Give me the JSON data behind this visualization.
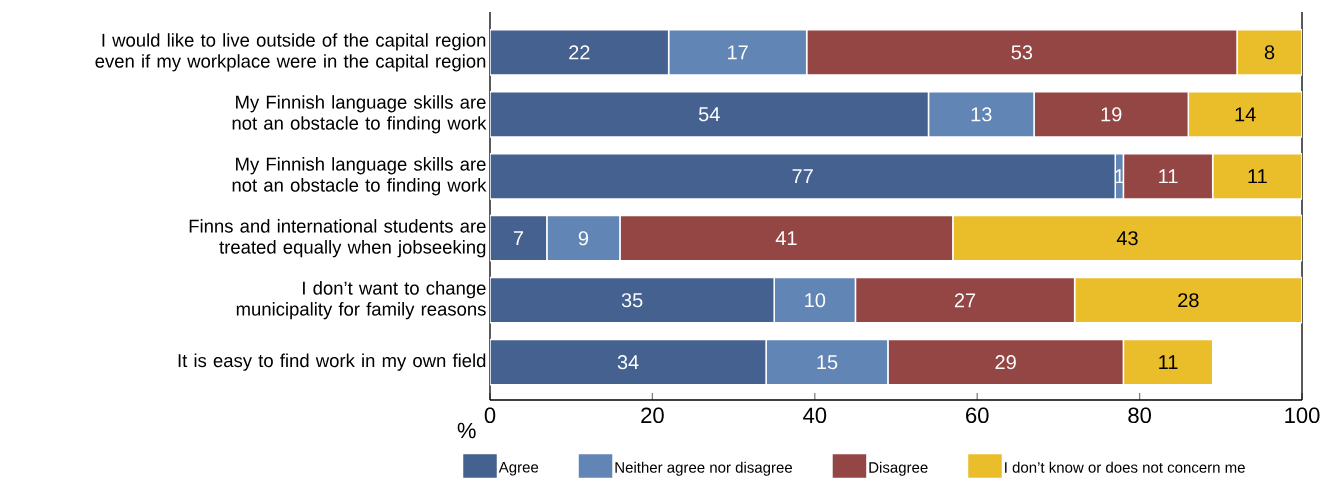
{
  "chart_data": {
    "type": "bar",
    "orientation": "horizontal",
    "stacked": true,
    "categories": [
      "I would like to live outside of the capital region even if my workplace were in the capital region",
      "My Finnish language skills are not an obstacle to finding work",
      "My Finnish language skills are not an obstacle to finding work",
      "Finns and international students are treated equally when jobseeking",
      "I don’t want to change municipality for family reasons",
      "It is easy to find work in my own field"
    ],
    "series": [
      {
        "name": "Agree",
        "color": "#44618f",
        "values": [
          22,
          54,
          77,
          7,
          35,
          34
        ]
      },
      {
        "name": "Neither agree nor disagree",
        "color": "#6185b5",
        "values": [
          17,
          13,
          1,
          9,
          10,
          15
        ]
      },
      {
        "name": "Disagree",
        "color": "#944645",
        "values": [
          53,
          19,
          11,
          41,
          27,
          29
        ]
      },
      {
        "name": "I don’t know or does not concern me",
        "color": "#eabd2b",
        "values": [
          8,
          14,
          11,
          43,
          28,
          11
        ]
      }
    ],
    "data_labels": true,
    "xlabel": "%",
    "xlim": [
      0,
      100
    ],
    "xticks": [
      0,
      20,
      40,
      60,
      80,
      100
    ],
    "legend": "bottom"
  }
}
